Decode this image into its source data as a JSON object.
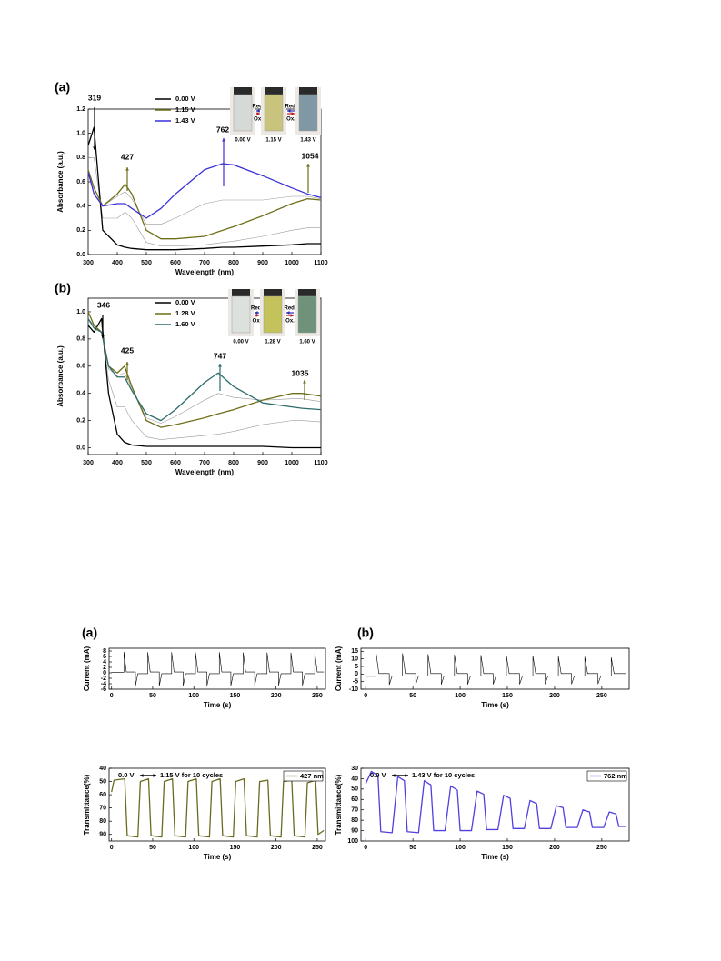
{
  "chart_data": [
    {
      "type": "line",
      "panel": "(a)",
      "x_label": "Wavelength (nm)",
      "y_label": "Absorbance (a.u.)",
      "x": [
        300,
        320,
        350,
        400,
        427,
        450,
        500,
        550,
        600,
        700,
        762,
        800,
        900,
        1000,
        1054,
        1100
      ],
      "xlim": [
        300,
        1100
      ],
      "xticks": [
        300,
        400,
        500,
        600,
        700,
        800,
        900,
        1000,
        1100
      ],
      "ylim": [
        0,
        1.2
      ],
      "yticks": [
        {
          "value": 0,
          "label": "0.0"
        },
        0.2,
        0.4,
        0.6,
        0.8,
        {
          "value": 1,
          "label": "1.0"
        },
        1.2
      ],
      "series": [
        {
          "color": "#9a9a9a",
          "values": [
            0.8,
            0.8,
            0.3,
            0.3,
            0.35,
            0.3,
            0.1,
            0.07,
            0.07,
            0.08,
            0.1,
            0.11,
            0.15,
            0.2,
            0.22,
            0.22
          ]
        },
        {
          "color": "#9a9a9a",
          "values": [
            0.7,
            0.55,
            0.4,
            0.48,
            0.52,
            0.46,
            0.25,
            0.25,
            0.3,
            0.42,
            0.45,
            0.45,
            0.45,
            0.48,
            0.48,
            0.46
          ]
        },
        {
          "name": "0.00 V",
          "color": "#000000",
          "values": [
            0.9,
            1.05,
            0.2,
            0.08,
            0.06,
            0.05,
            0.04,
            0.04,
            0.04,
            0.05,
            0.06,
            0.06,
            0.07,
            0.08,
            0.09,
            0.09
          ]
        },
        {
          "name": "1.15 V",
          "color": "#6f6f1a",
          "values": [
            0.7,
            0.55,
            0.4,
            0.5,
            0.58,
            0.5,
            0.2,
            0.13,
            0.13,
            0.15,
            0.2,
            0.23,
            0.32,
            0.42,
            0.46,
            0.45
          ]
        },
        {
          "name": "1.43 V",
          "color": "#3a30d8",
          "values": [
            0.68,
            0.5,
            0.4,
            0.42,
            0.42,
            0.38,
            0.3,
            0.38,
            0.5,
            0.7,
            0.75,
            0.74,
            0.65,
            0.55,
            0.5,
            0.47
          ]
        }
      ],
      "annotations": [
        {
          "text": "319",
          "color": "#000000"
        },
        {
          "text": "427",
          "color": "#6f6f1a"
        },
        {
          "text": "762",
          "color": "#3a30d8"
        },
        {
          "text": "1054",
          "color": "#6f6f1a"
        }
      ],
      "inset": {
        "labels": [
          "0.00 V",
          "1.15 V",
          "1.43 V"
        ],
        "colors": [
          "#d6dad6",
          "#c8c47e",
          "#7f98a4"
        ],
        "reduce": "Red.",
        "oxidize": "Ox."
      }
    },
    {
      "type": "line",
      "panel": "(b)",
      "x_label": "Wavelength (nm)",
      "y_label": "Absorbance (a.u.)",
      "x": [
        300,
        320,
        346,
        370,
        400,
        425,
        450,
        500,
        550,
        600,
        700,
        747,
        800,
        900,
        1000,
        1035,
        1100
      ],
      "xlim": [
        300,
        1100
      ],
      "xticks": [
        300,
        400,
        500,
        600,
        700,
        800,
        900,
        1000,
        1100
      ],
      "ylim": [
        -0.05,
        1.1
      ],
      "yticks": [
        {
          "value": 0,
          "label": "0.0"
        },
        0.2,
        0.4,
        0.6,
        0.8,
        {
          "value": 1,
          "label": "1.0"
        }
      ],
      "series": [
        {
          "color": "#9a9a9a",
          "values": [
            0.95,
            0.9,
            0.9,
            0.5,
            0.3,
            0.3,
            0.2,
            0.08,
            0.06,
            0.07,
            0.09,
            0.1,
            0.12,
            0.17,
            0.2,
            0.2,
            0.19
          ]
        },
        {
          "color": "#9a9a9a",
          "values": [
            0.95,
            0.88,
            0.85,
            0.58,
            0.53,
            0.55,
            0.44,
            0.22,
            0.18,
            0.23,
            0.35,
            0.4,
            0.37,
            0.35,
            0.36,
            0.36,
            0.34
          ]
        },
        {
          "name": "0.00 V",
          "color": "#000000",
          "values": [
            0.9,
            0.85,
            0.95,
            0.4,
            0.1,
            0.04,
            0.02,
            0.01,
            0.01,
            0.01,
            0.01,
            0.01,
            0.01,
            0.01,
            0,
            0,
            0
          ]
        },
        {
          "name": "1.28 V",
          "color": "#6f6f1a",
          "values": [
            1.0,
            0.9,
            0.85,
            0.6,
            0.55,
            0.6,
            0.45,
            0.2,
            0.15,
            0.17,
            0.22,
            0.25,
            0.28,
            0.35,
            0.4,
            0.4,
            0.38
          ]
        },
        {
          "name": "1.60 V",
          "color": "#2c6c6c",
          "values": [
            0.95,
            0.88,
            0.85,
            0.6,
            0.52,
            0.52,
            0.42,
            0.25,
            0.2,
            0.28,
            0.48,
            0.55,
            0.45,
            0.33,
            0.3,
            0.29,
            0.28
          ]
        }
      ],
      "annotations": [
        {
          "text": "346",
          "color": "#000000"
        },
        {
          "text": "425",
          "color": "#6f6f1a"
        },
        {
          "text": "747",
          "color": "#2c6c6c"
        },
        {
          "text": "1035",
          "color": "#6f6f1a"
        }
      ],
      "inset": {
        "labels": [
          "0.00 V",
          "1.28 V",
          "1.60 V"
        ],
        "colors": [
          "#dde1dd",
          "#c4c25a",
          "#6f927a"
        ],
        "reduce": "Red.",
        "oxidize": "Ox."
      }
    },
    {
      "type": "line",
      "panel": "(a)",
      "x_label": "Time (s)",
      "y_label": "Current (mA)",
      "x": [
        0,
        15,
        15,
        18,
        29,
        29,
        32,
        44,
        44,
        47,
        58,
        58,
        61,
        73,
        73,
        76,
        87,
        87,
        90,
        102,
        102,
        105,
        116,
        116,
        119,
        131,
        131,
        134,
        145,
        145,
        148,
        160,
        160,
        163,
        174,
        174,
        177,
        189,
        189,
        192,
        203,
        203,
        206,
        218,
        218,
        221,
        232,
        232,
        235,
        247,
        247,
        250,
        258
      ],
      "xlim": [
        -3,
        260
      ],
      "xticks": [
        0,
        50,
        100,
        150,
        200,
        250
      ],
      "ylim": [
        -6,
        9
      ],
      "yticks": [
        -6,
        -4,
        -2,
        0,
        2,
        4,
        6,
        8
      ],
      "series": [
        {
          "color": "#000000",
          "values": [
            0.2,
            0.2,
            7.6,
            0.3,
            0.3,
            -4.8,
            -0.3,
            -0.3,
            7.5,
            0.3,
            0.3,
            -4.8,
            -0.3,
            -0.3,
            7.5,
            0.3,
            0.3,
            -4.7,
            -0.3,
            -0.3,
            7.4,
            0.3,
            0.3,
            -4.7,
            -0.3,
            -0.3,
            7.5,
            0.3,
            0.3,
            -4.7,
            -0.3,
            -0.3,
            7.4,
            0.3,
            0.3,
            -4.6,
            -0.3,
            -0.3,
            7.4,
            0.3,
            0.3,
            -4.6,
            -0.3,
            -0.3,
            7.3,
            0.3,
            0.3,
            -4.6,
            -0.3,
            -0.3,
            7.3,
            0.3,
            0.3
          ]
        }
      ]
    },
    {
      "type": "line",
      "x_label": "Time (s)",
      "y_label": "Transmittance(%)",
      "y_inverted": true,
      "x": [
        0,
        3,
        16,
        19,
        32,
        35,
        45,
        48,
        61,
        64,
        74,
        77,
        90,
        93,
        103,
        106,
        119,
        122,
        132,
        135,
        148,
        151,
        161,
        164,
        177,
        180,
        190,
        193,
        206,
        209,
        219,
        222,
        235,
        238,
        248,
        251,
        258
      ],
      "xlim": [
        -3,
        260
      ],
      "xticks": [
        0,
        50,
        100,
        150,
        200,
        250
      ],
      "ylim": [
        40,
        95
      ],
      "yticks": [
        40,
        50,
        60,
        70,
        80,
        90
      ],
      "series": [
        {
          "name": "427 nm",
          "color": "#6b6b20",
          "values": [
            58,
            49,
            48,
            91,
            92,
            50,
            48,
            91,
            92,
            50,
            48,
            91,
            92,
            50,
            48,
            91,
            92,
            50,
            48,
            91,
            92,
            50,
            48,
            91,
            92,
            50,
            49,
            91,
            92,
            50,
            49,
            91,
            92,
            51,
            49,
            90,
            87
          ]
        }
      ],
      "legend": "upper right",
      "annotations": [
        "0.0 V",
        "1.15 V for 10 cycles"
      ]
    },
    {
      "type": "line",
      "panel": "(b)",
      "x_label": "Time (s)",
      "y_label": "Current (mA)",
      "x": [
        0,
        11,
        11,
        14,
        25,
        25,
        28,
        39,
        39,
        42,
        53,
        53,
        56,
        66,
        66,
        69,
        80,
        80,
        83,
        94,
        94,
        97,
        108,
        108,
        111,
        122,
        122,
        125,
        135,
        135,
        138,
        149,
        149,
        152,
        163,
        163,
        166,
        177,
        177,
        180,
        190,
        190,
        193,
        204,
        204,
        207,
        218,
        218,
        221,
        232,
        232,
        235,
        246,
        246,
        249,
        260,
        260,
        263,
        276
      ],
      "xlim": [
        -5,
        279
      ],
      "xticks": [
        0,
        50,
        100,
        150,
        200,
        250
      ],
      "ylim": [
        -10,
        17
      ],
      "yticks": [
        -10,
        -5,
        0,
        5,
        10,
        15
      ],
      "series": [
        {
          "color": "#000000",
          "values": [
            -1.5,
            -1.5,
            14,
            0.3,
            0.3,
            -7,
            -1.2,
            -1.2,
            13.5,
            0.3,
            0.3,
            -6.9,
            -1.2,
            -1.2,
            13,
            0.3,
            0.3,
            -6.8,
            -1.2,
            -1.2,
            12.6,
            0.3,
            0.3,
            -6.8,
            -1.2,
            -1.2,
            12.4,
            0.3,
            0.3,
            -6.7,
            -1.2,
            -1.2,
            12.2,
            0.3,
            0.3,
            -6.7,
            -1.2,
            -1.2,
            12,
            0.3,
            0.3,
            -6.6,
            -1.2,
            -1.2,
            11.6,
            0.3,
            0.3,
            -6.6,
            -1.2,
            -1.2,
            11.3,
            0.3,
            0.3,
            -6.5,
            -1.2,
            -1.2,
            10.8,
            0.3,
            0.3
          ]
        }
      ]
    },
    {
      "type": "line",
      "x_label": "Time (s)",
      "y_label": "Transmittance(%)",
      "y_inverted": true,
      "x": [
        0,
        6,
        13,
        16,
        28,
        34,
        41,
        44,
        56,
        62,
        69,
        72,
        84,
        90,
        97,
        100,
        112,
        118,
        125,
        128,
        140,
        146,
        153,
        156,
        168,
        174,
        181,
        184,
        196,
        202,
        209,
        212,
        224,
        230,
        237,
        240,
        252,
        258,
        265,
        268,
        276
      ],
      "xlim": [
        -5,
        279
      ],
      "xticks": [
        0,
        50,
        100,
        150,
        200,
        250
      ],
      "ylim": [
        30,
        100
      ],
      "yticks": [
        30,
        40,
        50,
        60,
        70,
        80,
        90,
        100
      ],
      "series": [
        {
          "name": "762 nm",
          "color": "#5040e0",
          "values": [
            45,
            33,
            37,
            91,
            92,
            38,
            42,
            91,
            92,
            42,
            46,
            90,
            90,
            47,
            51,
            90,
            90,
            52,
            55,
            89,
            89,
            56,
            59,
            88,
            88,
            61,
            64,
            88,
            88,
            66,
            68,
            87,
            87,
            70,
            72,
            87,
            87,
            72,
            74,
            86,
            86
          ]
        }
      ],
      "legend": "upper right",
      "annotations": [
        "0.0 V",
        "1.43 V for 10 cycles"
      ]
    }
  ]
}
